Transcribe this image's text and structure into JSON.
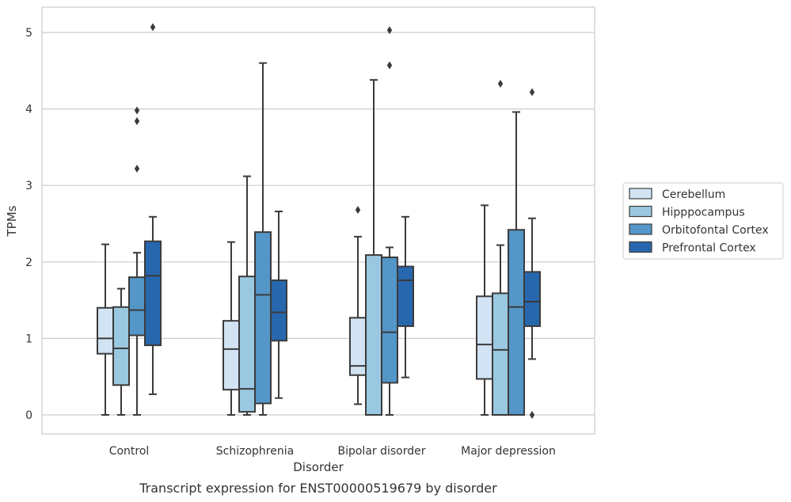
{
  "chart_data": {
    "type": "box",
    "caption": "Transcript expression for ENST00000519679 by disorder",
    "xlabel": "Disorder",
    "ylabel": "TPMs",
    "ylim": [
      -0.25,
      5.35
    ],
    "yticks": [
      0,
      1,
      2,
      3,
      4,
      5
    ],
    "grid": "horizontal",
    "legend_position": "right",
    "categories": [
      "Control",
      "Schizophrenia",
      "Bipolar disorder",
      "Major depression"
    ],
    "series": [
      {
        "name": "Cerebellum",
        "color": "#d2e3f3",
        "boxes": [
          {
            "whislo": 0.0,
            "q1": 0.8,
            "med": 1.0,
            "q3": 1.4,
            "whishi": 2.23,
            "fliers": []
          },
          {
            "whislo": 0.0,
            "q1": 0.33,
            "med": 0.86,
            "q3": 1.23,
            "whishi": 2.26,
            "fliers": []
          },
          {
            "whislo": 0.14,
            "q1": 0.52,
            "med": 0.64,
            "q3": 1.27,
            "whishi": 2.33,
            "fliers": [
              2.68
            ]
          },
          {
            "whislo": 0.0,
            "q1": 0.47,
            "med": 0.92,
            "q3": 1.55,
            "whishi": 2.74,
            "fliers": []
          }
        ]
      },
      {
        "name": "Hipppocampus",
        "color": "#9ac8e0",
        "boxes": [
          {
            "whislo": 0.0,
            "q1": 0.39,
            "med": 0.87,
            "q3": 1.41,
            "whishi": 1.65,
            "fliers": []
          },
          {
            "whislo": 0.0,
            "q1": 0.04,
            "med": 0.34,
            "q3": 1.81,
            "whishi": 3.12,
            "fliers": []
          },
          {
            "whislo": 0.0,
            "q1": 0.0,
            "med": 0.0,
            "q3": 2.09,
            "whishi": 4.38,
            "fliers": []
          },
          {
            "whislo": 0.0,
            "q1": 0.0,
            "med": 0.85,
            "q3": 1.59,
            "whishi": 2.22,
            "fliers": [
              4.33
            ]
          }
        ]
      },
      {
        "name": "Orbitofontal Cortex",
        "color": "#5496c8",
        "boxes": [
          {
            "whislo": 0.0,
            "q1": 1.04,
            "med": 1.37,
            "q3": 1.8,
            "whishi": 2.12,
            "fliers": [
              3.22,
              3.84,
              3.98
            ]
          },
          {
            "whislo": 0.0,
            "q1": 0.15,
            "med": 1.57,
            "q3": 2.39,
            "whishi": 4.6,
            "fliers": []
          },
          {
            "whislo": 0.0,
            "q1": 0.42,
            "med": 1.08,
            "q3": 2.06,
            "whishi": 2.19,
            "fliers": [
              4.57,
              5.03
            ]
          },
          {
            "whislo": 0.0,
            "q1": 0.0,
            "med": 1.41,
            "q3": 2.42,
            "whishi": 3.96,
            "fliers": []
          }
        ]
      },
      {
        "name": "Prefrontal Cortex",
        "color": "#2767ae",
        "boxes": [
          {
            "whislo": 0.27,
            "q1": 0.91,
            "med": 1.82,
            "q3": 2.27,
            "whishi": 2.59,
            "fliers": [
              5.07
            ]
          },
          {
            "whislo": 0.22,
            "q1": 0.97,
            "med": 1.34,
            "q3": 1.76,
            "whishi": 2.66,
            "fliers": []
          },
          {
            "whislo": 0.49,
            "q1": 1.16,
            "med": 1.76,
            "q3": 1.94,
            "whishi": 2.59,
            "fliers": []
          },
          {
            "whislo": 0.73,
            "q1": 1.16,
            "med": 1.48,
            "q3": 1.87,
            "whishi": 2.57,
            "fliers": [
              0.0,
              4.22
            ]
          }
        ]
      }
    ]
  }
}
